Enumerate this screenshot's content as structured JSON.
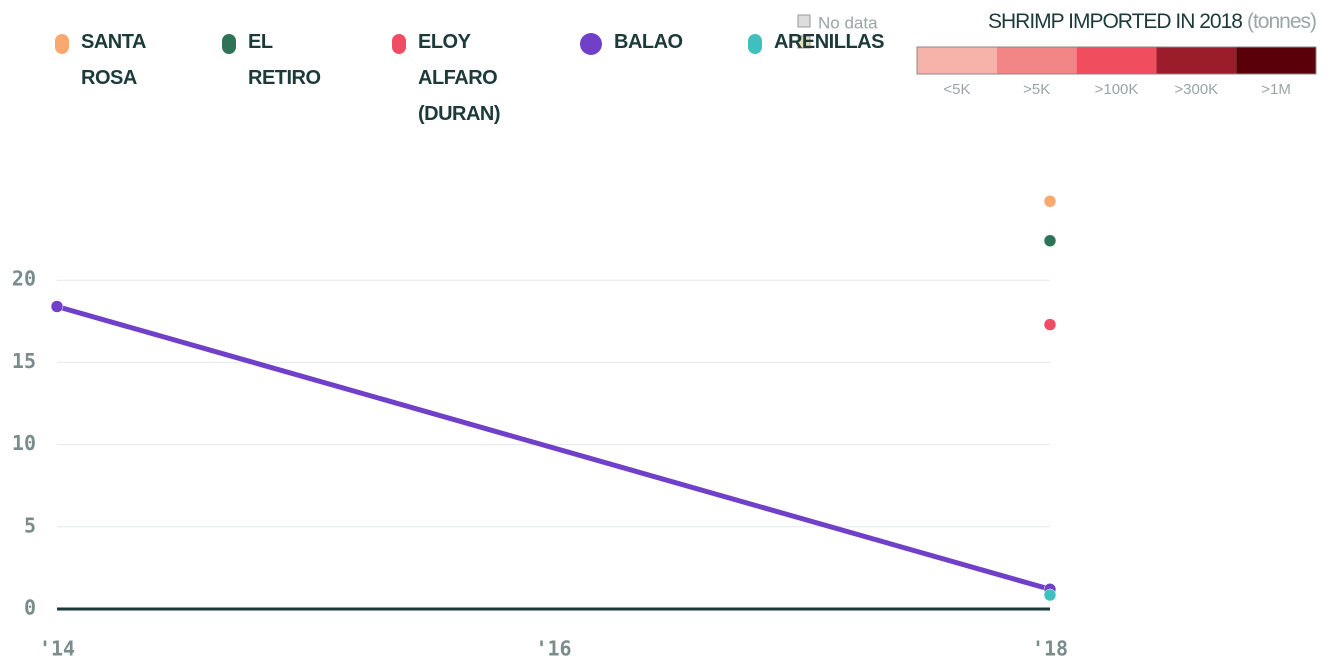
{
  "chart_data": {
    "type": "line",
    "x": [
      2014,
      2018
    ],
    "xlim": [
      2014,
      2018
    ],
    "xticks": [
      {
        "value": 2014,
        "label": "'14"
      },
      {
        "value": 2016,
        "label": "'16"
      },
      {
        "value": 2018,
        "label": "'18"
      }
    ],
    "ylim": [
      0,
      25
    ],
    "yticks": [
      0,
      5,
      10,
      15,
      20
    ],
    "grid": true,
    "series": [
      {
        "name": "SANTA ROSA",
        "color": "#f9a86f",
        "values": [
          null,
          24.8
        ]
      },
      {
        "name": "EL RETIRO",
        "color": "#2e7358",
        "values": [
          null,
          22.4
        ]
      },
      {
        "name": "ELOY ALFARO (DURAN)",
        "color": "#ef4d64",
        "values": [
          null,
          17.3
        ]
      },
      {
        "name": "BALAO",
        "color": "#7040c8",
        "values": [
          18.4,
          1.2
        ]
      },
      {
        "name": "ARENILLAS",
        "color": "#40bfbf",
        "values": [
          null,
          0.85
        ]
      }
    ]
  },
  "map_legend": {
    "title": "SHRIMP IMPORTED IN 2018",
    "unit": "(tonnes)",
    "no_data": "No data",
    "bins": [
      {
        "label": "<5K",
        "color": "#f7b3aa"
      },
      {
        "label": ">5K",
        "color": "#f28585"
      },
      {
        "label": ">100K",
        "color": "#f04e5e"
      },
      {
        "label": ">300K",
        "color": "#9b1d2b"
      },
      {
        "label": ">1M",
        "color": "#5a0009"
      }
    ]
  }
}
